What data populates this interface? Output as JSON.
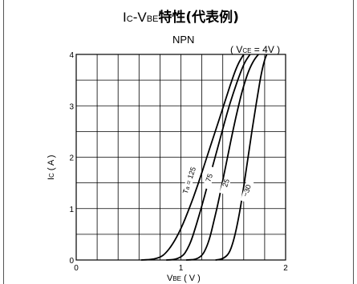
{
  "chart_data": {
    "type": "line",
    "title": "Ic-VBE特性(代表例)",
    "title_parts": {
      "ic": "I",
      "ic_sub": "C",
      "dash": "-V",
      "vbe_sub": "BE",
      "bold": "特性(代表例)"
    },
    "subtitle": "NPN",
    "condition": "( VCE = 4V )",
    "condition_parts": {
      "open": "( V",
      "sub": "CE",
      "close": " = 4V )"
    },
    "xlabel": "VBE ( V )",
    "xlabel_parts": {
      "main": "V",
      "sub": "BE",
      "unit": " ( V )"
    },
    "ylabel": "Ic ( A )",
    "ylabel_parts": {
      "main": "I",
      "sub": "C",
      "unit": " ( A )"
    },
    "xlim": [
      0,
      2
    ],
    "ylim": [
      0,
      4
    ],
    "x_ticks": [
      {
        "value": 0,
        "label": "0"
      },
      {
        "value": 1,
        "label": "1"
      },
      {
        "value": 2,
        "label": "2"
      }
    ],
    "y_ticks": [
      {
        "value": 0,
        "label": "0"
      },
      {
        "value": 1,
        "label": "1"
      },
      {
        "value": 2,
        "label": "2"
      },
      {
        "value": 3,
        "label": "3"
      },
      {
        "value": 4,
        "label": "4"
      }
    ],
    "grid": true,
    "x_gridlines": [
      0,
      0.2,
      0.4,
      0.6,
      0.8,
      1.0,
      1.2,
      1.4,
      1.6,
      1.8,
      2.0
    ],
    "y_gridlines": [
      0,
      0.5,
      1.0,
      1.5,
      2.0,
      2.5,
      3.0,
      3.5,
      4.0
    ],
    "series": [
      {
        "name": "Ta = 125",
        "label_main": "T",
        "label_sub": "a",
        "label_rest": " = 125",
        "x": [
          0.62,
          0.72,
          0.8,
          0.85,
          0.92,
          1.0,
          1.08,
          1.16,
          1.24,
          1.32,
          1.4,
          1.47,
          1.54,
          1.6
        ],
        "y": [
          0.0,
          0.01,
          0.05,
          0.12,
          0.3,
          0.6,
          1.0,
          1.45,
          1.95,
          2.45,
          2.95,
          3.4,
          3.8,
          4.0
        ]
      },
      {
        "name": "75",
        "label_main": "75",
        "label_sub": "",
        "label_rest": "",
        "x": [
          0.86,
          0.95,
          1.02,
          1.06,
          1.1,
          1.15,
          1.2,
          1.26,
          1.32,
          1.38,
          1.44,
          1.5,
          1.56,
          1.61,
          1.66
        ],
        "y": [
          0.0,
          0.01,
          0.08,
          0.2,
          0.38,
          0.7,
          1.05,
          1.5,
          1.95,
          2.4,
          2.85,
          3.25,
          3.6,
          3.85,
          4.0
        ]
      },
      {
        "name": "25",
        "label_main": "25",
        "label_sub": "",
        "label_rest": "",
        "x": [
          1.05,
          1.14,
          1.2,
          1.24,
          1.28,
          1.32,
          1.36,
          1.4,
          1.45,
          1.5,
          1.55,
          1.6,
          1.65,
          1.7,
          1.74
        ],
        "y": [
          0.0,
          0.01,
          0.08,
          0.22,
          0.45,
          0.8,
          1.15,
          1.55,
          2.05,
          2.55,
          3.0,
          3.4,
          3.7,
          3.9,
          4.0
        ]
      },
      {
        "name": "−30",
        "label_main": "−30",
        "label_sub": "",
        "label_rest": "",
        "x": [
          1.33,
          1.4,
          1.46,
          1.5,
          1.54,
          1.58,
          1.62,
          1.66,
          1.7,
          1.74,
          1.77,
          1.8,
          1.82
        ],
        "y": [
          0.0,
          0.02,
          0.12,
          0.35,
          0.7,
          1.15,
          1.7,
          2.25,
          2.8,
          3.3,
          3.65,
          3.9,
          4.0
        ]
      }
    ],
    "curve_labels": [
      {
        "series": 0,
        "x": 1.08,
        "y": 1.55
      },
      {
        "series": 1,
        "x": 1.27,
        "y": 1.6
      },
      {
        "series": 2,
        "x": 1.43,
        "y": 1.5
      },
      {
        "series": 3,
        "x": 1.63,
        "y": 1.35
      }
    ]
  }
}
